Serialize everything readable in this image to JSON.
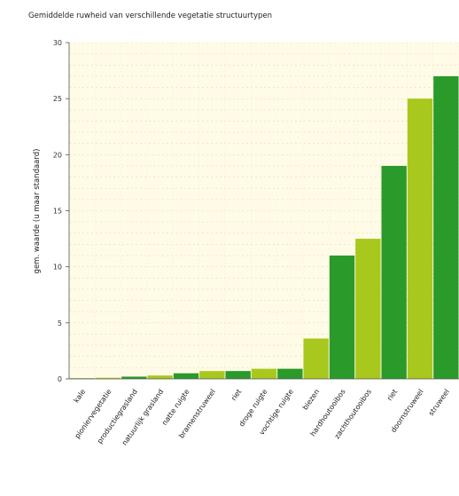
{
  "chart_data": {
    "type": "bar",
    "title": "Gemiddelde ruwheid van verschillende vegetatie structuurtypen",
    "xlabel": "",
    "ylabel": "gem. waarde (u maar standaard)",
    "ylim": [
      0,
      30
    ],
    "yticks": [
      0,
      5,
      10,
      15,
      20,
      25,
      30
    ],
    "grid": true,
    "legend": "none",
    "categories": [
      "kale",
      "pioniervegetatie",
      "productiegrasland",
      "natuurlijk grasland",
      "natte ruigte",
      "bramenstruweel",
      "riet",
      "droge ruigte",
      "vochtige ruigte",
      "biezen",
      "hardhoutooibos",
      "zachthoutooibos",
      "riet",
      "doornstruweel",
      "struweel"
    ],
    "values": [
      0.05,
      0.1,
      0.2,
      0.3,
      0.5,
      0.7,
      0.7,
      0.9,
      0.9,
      3.6,
      11.0,
      12.5,
      19.0,
      25.0,
      27.0
    ],
    "colors": [
      "#2a9a2a",
      "#a8c81e"
    ],
    "background_color": "#fffbe6"
  }
}
